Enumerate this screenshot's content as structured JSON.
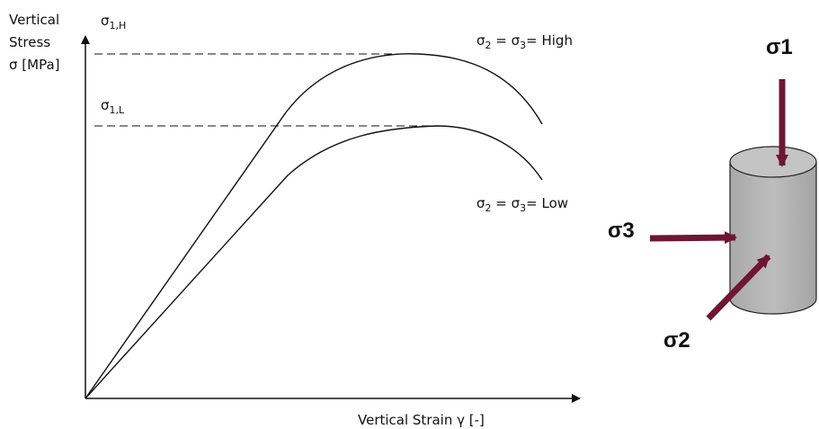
{
  "labels": {
    "y_axis": [
      "Vertical",
      "Stress",
      "σ [MPa]"
    ],
    "sigma_1h": [
      "σ",
      "1,H"
    ],
    "sigma_1l": [
      "σ",
      "1,L"
    ],
    "curve_high": [
      "σ",
      "2",
      " = σ",
      "3",
      "= High"
    ],
    "curve_low": [
      "σ",
      "2",
      " = σ",
      "3",
      "= Low"
    ],
    "x_axis": "Vertical Strain γ [-]",
    "cylinder": {
      "sigma1": "σ1",
      "sigma3": "σ3",
      "sigma2": "σ2"
    }
  }
}
